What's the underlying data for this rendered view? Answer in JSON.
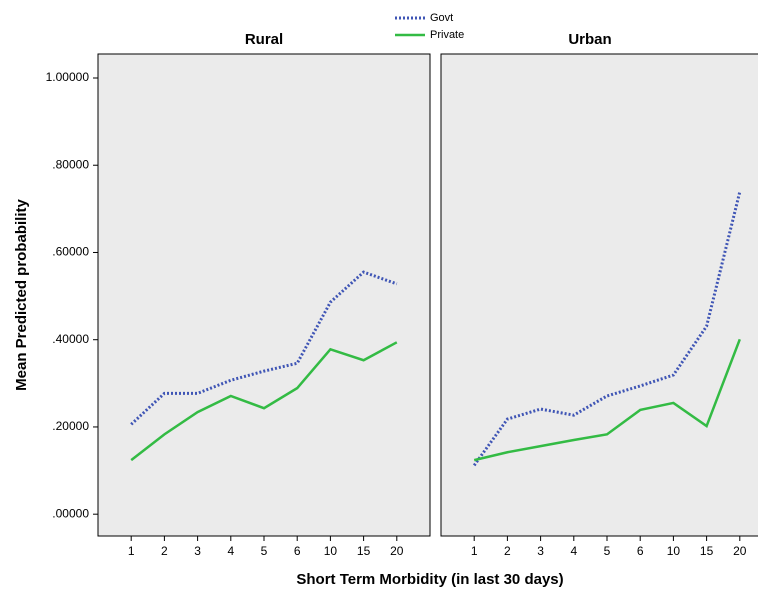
{
  "chart_data": {
    "type": "line",
    "x_label": "Short Term Morbidity (in last 30 days)",
    "y_label": "Mean Predicted probability",
    "categories": [
      "1",
      "2",
      "3",
      "4",
      "5",
      "6",
      "10",
      "15",
      "20"
    ],
    "ylim": [
      -0.05,
      1.055
    ],
    "yticks": [
      {
        "value": 0,
        "label": ".00000"
      },
      {
        "value": 0.2,
        "label": ".20000"
      },
      {
        "value": 0.4,
        "label": ".40000"
      },
      {
        "value": 0.6,
        "label": ".60000"
      },
      {
        "value": 0.8,
        "label": ".80000"
      },
      {
        "value": 1.0,
        "label": "1.00000"
      }
    ],
    "series": [
      {
        "name": "Govt",
        "color": "#3f55b5",
        "dashed": true
      },
      {
        "name": "Private",
        "color": "#33bb44",
        "dashed": false
      }
    ],
    "panels": [
      {
        "title": "Rural",
        "series": [
          {
            "values": [
              0.206,
              0.277,
              0.277,
              0.307,
              0.328,
              0.346,
              0.486,
              0.555,
              0.528
            ]
          },
          {
            "values": [
              0.124,
              0.183,
              0.234,
              0.271,
              0.243,
              0.289,
              0.378,
              0.353,
              0.394
            ]
          }
        ]
      },
      {
        "title": "Urban",
        "series": [
          {
            "values": [
              0.112,
              0.218,
              0.241,
              0.227,
              0.271,
              0.294,
              0.319,
              0.431,
              0.739
            ]
          },
          {
            "values": [
              0.124,
              0.142,
              0.156,
              0.17,
              0.183,
              0.239,
              0.255,
              0.202,
              0.401
            ]
          }
        ]
      }
    ]
  }
}
